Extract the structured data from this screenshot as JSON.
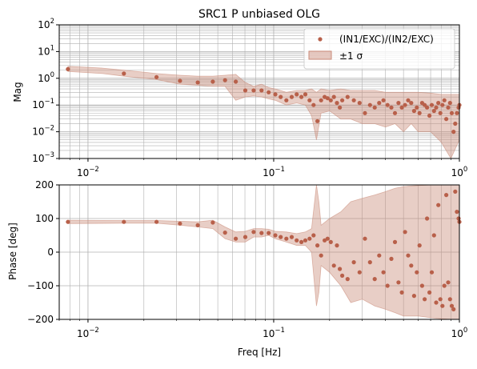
{
  "chart_data": [
    {
      "type": "scatter",
      "title": "SRC1 P unbiased OLG",
      "xlabel": "",
      "ylabel": "Mag",
      "xscale": "log",
      "yscale": "log",
      "xlim": [
        0.007,
        1.0
      ],
      "ylim": [
        0.001,
        100
      ],
      "xticks": [
        {
          "value": 0.01,
          "base": "10",
          "exp": "−2"
        },
        {
          "value": 0.1,
          "base": "10",
          "exp": "−1"
        },
        {
          "value": 1,
          "base": "10",
          "exp": "0"
        }
      ],
      "yticks": [
        {
          "value": 0.001,
          "base": "10",
          "exp": "−3"
        },
        {
          "value": 0.01,
          "base": "10",
          "exp": "−2"
        },
        {
          "value": 0.1,
          "base": "10",
          "exp": "−1"
        },
        {
          "value": 1,
          "base": "10",
          "exp": "0"
        },
        {
          "value": 10,
          "base": "10",
          "exp": "1"
        },
        {
          "value": 100,
          "base": "10",
          "exp": "2"
        }
      ],
      "grid": true,
      "legend": {
        "placement": "top-right",
        "entries": [
          {
            "label": "(IN1/EXC)/(IN2/EXC)",
            "kind": "marker"
          },
          {
            "label": "±1 σ",
            "kind": "band"
          }
        ]
      },
      "series": [
        {
          "name": "(IN1/EXC)/(IN2/EXC)",
          "kind": "points",
          "color": "#b8604a",
          "x": [
            0.0078,
            0.0156,
            0.0234,
            0.0313,
            0.039,
            0.047,
            0.0547,
            0.0625,
            0.0703,
            0.078,
            0.086,
            0.094,
            0.102,
            0.109,
            0.117,
            0.125,
            0.133,
            0.141,
            0.148,
            0.156,
            0.164,
            0.172,
            0.18,
            0.188,
            0.195,
            0.203,
            0.211,
            0.219,
            0.227,
            0.234,
            0.25,
            0.27,
            0.29,
            0.31,
            0.33,
            0.35,
            0.37,
            0.39,
            0.41,
            0.43,
            0.45,
            0.47,
            0.49,
            0.51,
            0.53,
            0.55,
            0.57,
            0.59,
            0.61,
            0.63,
            0.65,
            0.67,
            0.69,
            0.71,
            0.73,
            0.75,
            0.77,
            0.79,
            0.81,
            0.83,
            0.85,
            0.87,
            0.89,
            0.91,
            0.93,
            0.95,
            0.97,
            0.99,
            1.0
          ],
          "y": [
            2.2,
            1.5,
            1.1,
            0.8,
            0.7,
            0.75,
            0.85,
            0.75,
            0.35,
            0.35,
            0.35,
            0.3,
            0.25,
            0.2,
            0.15,
            0.2,
            0.25,
            0.2,
            0.25,
            0.15,
            0.1,
            0.025,
            0.15,
            0.2,
            0.18,
            0.15,
            0.2,
            0.12,
            0.08,
            0.15,
            0.2,
            0.15,
            0.12,
            0.05,
            0.1,
            0.08,
            0.12,
            0.15,
            0.1,
            0.08,
            0.05,
            0.12,
            0.08,
            0.1,
            0.15,
            0.12,
            0.06,
            0.08,
            0.05,
            0.12,
            0.1,
            0.08,
            0.04,
            0.1,
            0.06,
            0.08,
            0.12,
            0.05,
            0.1,
            0.15,
            0.03,
            0.08,
            0.12,
            0.05,
            0.01,
            0.02,
            0.05,
            0.08,
            0.1
          ]
        },
        {
          "name": "±1 σ",
          "kind": "band",
          "color": "#c98a78",
          "x": [
            0.0078,
            0.012,
            0.0156,
            0.02,
            0.0234,
            0.0313,
            0.039,
            0.047,
            0.0547,
            0.0625,
            0.0703,
            0.078,
            0.086,
            0.094,
            0.102,
            0.117,
            0.133,
            0.148,
            0.16,
            0.17,
            0.18,
            0.2,
            0.23,
            0.26,
            0.3,
            0.35,
            0.4,
            0.45,
            0.5,
            0.55,
            0.6,
            0.7,
            0.8,
            0.9,
            1.0
          ],
          "lower": [
            1.8,
            1.5,
            1.2,
            1.0,
            0.9,
            0.6,
            0.55,
            0.5,
            0.5,
            0.15,
            0.2,
            0.22,
            0.2,
            0.17,
            0.15,
            0.1,
            0.12,
            0.1,
            0.04,
            0.005,
            0.05,
            0.06,
            0.03,
            0.03,
            0.02,
            0.02,
            0.015,
            0.02,
            0.01,
            0.02,
            0.01,
            0.01,
            0.004,
            0.001,
            0.005
          ],
          "upper": [
            2.8,
            2.4,
            2.0,
            1.7,
            1.5,
            1.3,
            1.2,
            1.2,
            1.3,
            1.4,
            0.7,
            0.5,
            0.6,
            0.45,
            0.4,
            0.3,
            0.35,
            0.35,
            0.4,
            0.3,
            0.4,
            0.35,
            0.4,
            0.35,
            0.35,
            0.35,
            0.3,
            0.3,
            0.3,
            0.3,
            0.3,
            0.28,
            0.25,
            0.25,
            0.25
          ]
        }
      ]
    },
    {
      "type": "scatter",
      "title": "",
      "xlabel": "Freq [Hz]",
      "ylabel": "Phase [deg]",
      "xscale": "log",
      "yscale": "linear",
      "xlim": [
        0.007,
        1.0
      ],
      "ylim": [
        -200,
        200
      ],
      "xticks": [
        {
          "value": 0.01,
          "base": "10",
          "exp": "−2"
        },
        {
          "value": 0.1,
          "base": "10",
          "exp": "−1"
        },
        {
          "value": 1,
          "base": "10",
          "exp": "0"
        }
      ],
      "yticks": [
        {
          "value": -200,
          "label": "−200"
        },
        {
          "value": -100,
          "label": "−100"
        },
        {
          "value": 0,
          "label": "0"
        },
        {
          "value": 100,
          "label": "100"
        },
        {
          "value": 200,
          "label": "200"
        }
      ],
      "grid": true,
      "series": [
        {
          "name": "(IN1/EXC)/(IN2/EXC)",
          "kind": "points",
          "color": "#b8604a",
          "x": [
            0.0078,
            0.0156,
            0.0234,
            0.0313,
            0.039,
            0.047,
            0.0547,
            0.0625,
            0.0703,
            0.078,
            0.086,
            0.094,
            0.102,
            0.109,
            0.117,
            0.125,
            0.133,
            0.141,
            0.148,
            0.156,
            0.164,
            0.172,
            0.18,
            0.188,
            0.195,
            0.203,
            0.211,
            0.219,
            0.227,
            0.234,
            0.25,
            0.27,
            0.29,
            0.31,
            0.33,
            0.35,
            0.37,
            0.39,
            0.41,
            0.43,
            0.45,
            0.47,
            0.49,
            0.51,
            0.53,
            0.55,
            0.57,
            0.59,
            0.61,
            0.63,
            0.65,
            0.67,
            0.69,
            0.71,
            0.73,
            0.75,
            0.77,
            0.79,
            0.81,
            0.83,
            0.85,
            0.87,
            0.89,
            0.91,
            0.93,
            0.95,
            0.97,
            0.99,
            1.0
          ],
          "y": [
            90,
            90,
            90,
            85,
            80,
            88,
            58,
            40,
            45,
            60,
            57,
            57,
            50,
            45,
            40,
            45,
            35,
            30,
            35,
            40,
            50,
            20,
            -10,
            35,
            40,
            30,
            -40,
            20,
            -50,
            -70,
            -80,
            -30,
            -60,
            40,
            -30,
            -80,
            -10,
            -60,
            -100,
            -20,
            30,
            -90,
            -120,
            60,
            -10,
            -40,
            -130,
            -60,
            20,
            -100,
            -140,
            100,
            -120,
            -60,
            50,
            -150,
            140,
            -140,
            -160,
            -100,
            170,
            -90,
            -140,
            -160,
            -170,
            180,
            120,
            100,
            90
          ]
        },
        {
          "name": "±1 σ",
          "kind": "band",
          "color": "#c98a78",
          "x": [
            0.0078,
            0.0156,
            0.0234,
            0.0313,
            0.039,
            0.047,
            0.0547,
            0.0625,
            0.0703,
            0.078,
            0.086,
            0.094,
            0.102,
            0.117,
            0.133,
            0.148,
            0.16,
            0.17,
            0.175,
            0.18,
            0.2,
            0.23,
            0.26,
            0.3,
            0.35,
            0.4,
            0.45,
            0.5,
            0.6,
            0.7,
            0.8,
            0.9,
            1.0
          ],
          "lower": [
            85,
            86,
            86,
            80,
            75,
            70,
            40,
            30,
            30,
            45,
            45,
            50,
            40,
            30,
            20,
            20,
            0,
            -160,
            -120,
            -40,
            -60,
            -100,
            -150,
            -140,
            -160,
            -170,
            -180,
            -190,
            -190,
            -195,
            -198,
            -200,
            -200
          ],
          "upper": [
            95,
            94,
            94,
            92,
            90,
            95,
            75,
            60,
            62,
            70,
            70,
            68,
            62,
            60,
            55,
            60,
            70,
            200,
            150,
            80,
            100,
            120,
            150,
            160,
            170,
            180,
            190,
            195,
            198,
            200,
            200,
            200,
            200
          ]
        }
      ]
    }
  ]
}
